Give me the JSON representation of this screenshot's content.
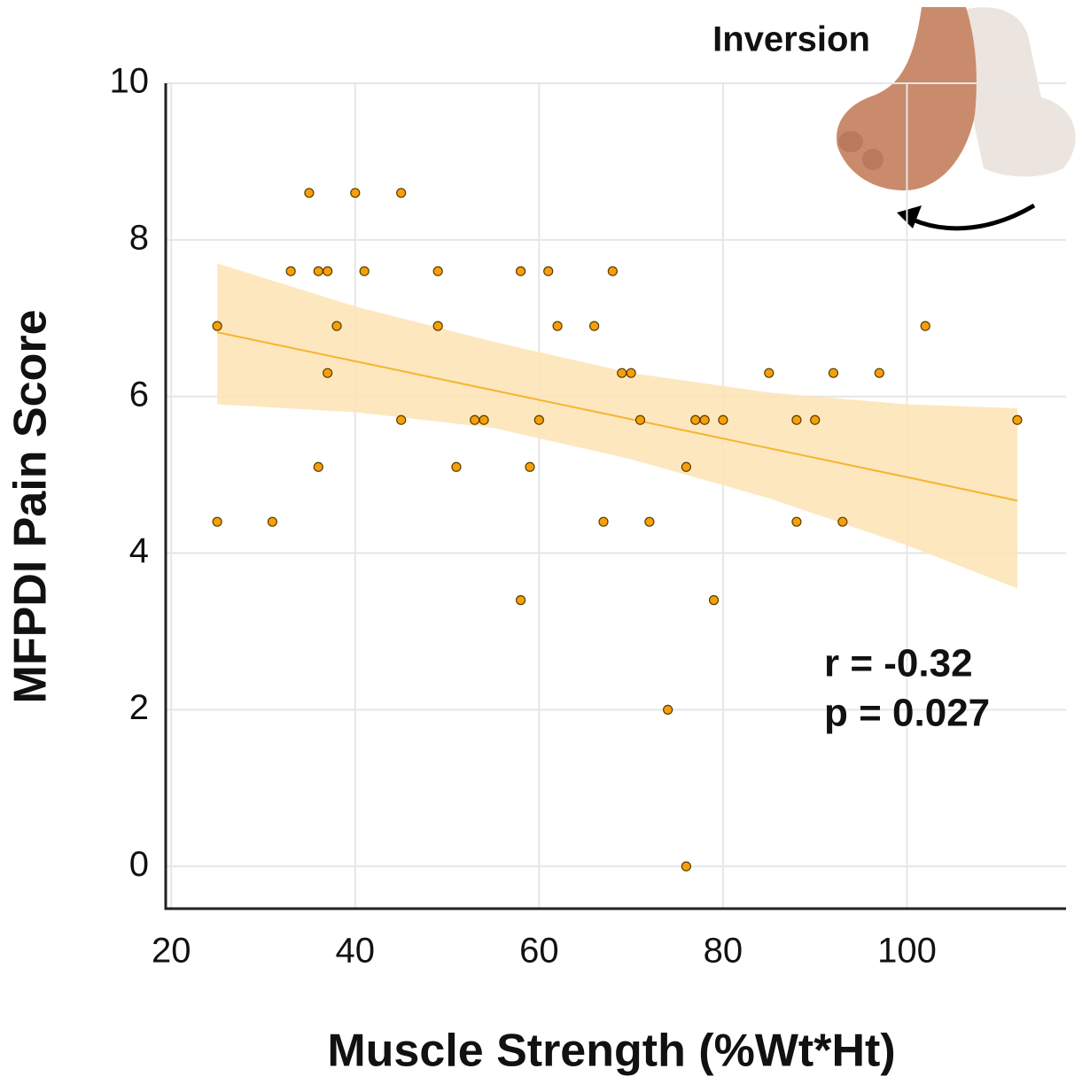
{
  "chart_data": {
    "type": "scatter",
    "x_label": "Muscle Strength (%Wt*Ht)",
    "y_label": "MFPDI Pain Score",
    "annotations": [
      "r = -0.32",
      "p = 0.027"
    ],
    "image_label": "Inversion",
    "xlim": [
      19.4,
      117.3
    ],
    "ylim": [
      -0.54,
      10
    ],
    "xticks": [
      20,
      40,
      60,
      80,
      100
    ],
    "yticks": [
      0,
      2,
      4,
      6,
      8,
      10
    ],
    "grid": true,
    "color": "#f5a00a",
    "x": [
      25,
      25,
      31,
      33,
      35,
      36,
      37,
      36,
      37,
      38,
      40,
      41,
      45,
      45,
      49,
      49,
      51,
      53,
      54,
      58,
      58,
      59,
      60,
      61,
      62,
      66,
      67,
      68,
      69,
      70,
      71,
      72,
      74,
      76,
      76,
      77,
      78,
      79,
      80,
      85,
      88,
      88,
      90,
      92,
      93,
      97,
      102,
      112
    ],
    "values": [
      6.9,
      4.4,
      4.4,
      7.6,
      8.6,
      7.6,
      7.6,
      5.1,
      6.3,
      6.9,
      8.6,
      7.6,
      8.6,
      5.7,
      7.6,
      6.9,
      5.1,
      5.7,
      5.7,
      7.6,
      3.4,
      5.1,
      5.7,
      7.6,
      6.9,
      6.9,
      4.4,
      7.6,
      6.3,
      6.3,
      5.7,
      4.4,
      2,
      5.1,
      0,
      5.7,
      5.7,
      3.4,
      5.7,
      6.3,
      5.7,
      4.4,
      5.7,
      6.3,
      4.4,
      6.3,
      6.9,
      5.7
    ],
    "fit": {
      "color": "#f5b530",
      "band_color": "#fde3b4",
      "x": [
        25,
        40,
        55,
        70,
        85,
        100,
        112
      ],
      "values": [
        6.82,
        6.45,
        6.08,
        5.71,
        5.34,
        4.97,
        4.67
      ],
      "upper": [
        7.7,
        7.15,
        6.7,
        6.3,
        6.05,
        5.9,
        5.85
      ],
      "lower": [
        5.9,
        5.8,
        5.6,
        5.2,
        4.7,
        4.1,
        3.55
      ]
    }
  }
}
